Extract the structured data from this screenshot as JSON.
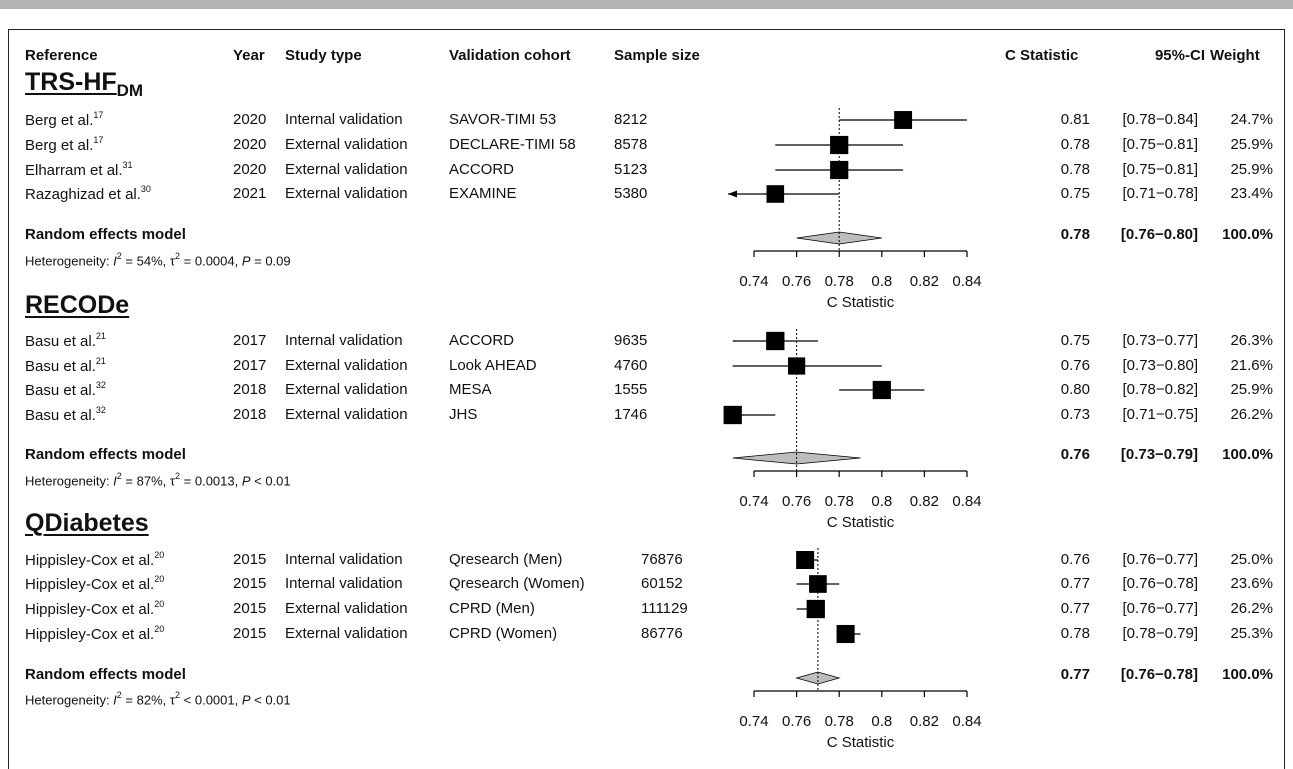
{
  "colors": {
    "square": "#000000",
    "diamond": "#bdbdbd",
    "border": "#222222",
    "topbar": "#b3b3b3"
  },
  "headers": {
    "reference": "Reference",
    "year": "Year",
    "study_type": "Study type",
    "cohort": "Validation cohort",
    "sample": "Sample size",
    "cstat": "C Statistic",
    "ci": "95%-CI",
    "weight": "Weight"
  },
  "chart_data": {
    "type": "forest",
    "xlabel": "C Statistic",
    "xlim": [
      0.74,
      0.84
    ],
    "xticks": [
      "0.74",
      "0.76",
      "0.78",
      "0.8",
      "0.82",
      "0.84"
    ],
    "groups": [
      {
        "title": "TRS-HF",
        "title_sub": "DM",
        "pooled_est": 0.78,
        "studies": [
          {
            "ref": "Berg et al.",
            "sup": "17",
            "year": "2020",
            "type": "Internal validation",
            "cohort": "SAVOR-TIMI 53",
            "n": "8212",
            "est": 0.81,
            "lo": 0.78,
            "hi": 0.84,
            "cstat": "0.81",
            "ci": "[0.78−0.84]",
            "weight": "24.7%",
            "w": 24.7
          },
          {
            "ref": "Berg et al.",
            "sup": "17",
            "year": "2020",
            "type": "External validation",
            "cohort": "DECLARE-TIMI 58",
            "n": "8578",
            "est": 0.78,
            "lo": 0.75,
            "hi": 0.81,
            "cstat": "0.78",
            "ci": "[0.75−0.81]",
            "weight": "25.9%",
            "w": 25.9
          },
          {
            "ref": "Elharram et al.",
            "sup": "31",
            "year": "2020",
            "type": "External validation",
            "cohort": "ACCORD",
            "n": "5123",
            "est": 0.78,
            "lo": 0.75,
            "hi": 0.81,
            "cstat": "0.78",
            "ci": "[0.75−0.81]",
            "weight": "25.9%",
            "w": 25.9
          },
          {
            "ref": "Razaghizad et al.",
            "sup": "30",
            "year": "2021",
            "type": "External validation",
            "cohort": "EXAMINE",
            "n": "5380",
            "est": 0.75,
            "lo": 0.71,
            "hi": 0.78,
            "cstat": "0.75",
            "ci": "[0.71−0.78]",
            "weight": "23.4%",
            "w": 23.4
          }
        ],
        "pooled": {
          "label": "Random effects model",
          "est": 0.78,
          "lo": 0.76,
          "hi": 0.8,
          "cstat": "0.78",
          "ci": "[0.76−0.80]",
          "weight": "100.0%"
        },
        "het": {
          "prefix": "Heterogeneity: ",
          "i2": "I",
          "i2_rest": " = 54%, τ",
          "tau_rest": " = 0.0004, ",
          "p": "P",
          "p_rest": " = 0.09"
        }
      },
      {
        "title": "RECODe",
        "title_sub": "",
        "pooled_est": 0.76,
        "studies": [
          {
            "ref": "Basu et al.",
            "sup": "21",
            "year": "2017",
            "type": "Internal validation",
            "cohort": "ACCORD",
            "n": "9635",
            "est": 0.75,
            "lo": 0.73,
            "hi": 0.77,
            "cstat": "0.75",
            "ci": "[0.73−0.77]",
            "weight": "26.3%",
            "w": 26.3
          },
          {
            "ref": "Basu et al.",
            "sup": "21",
            "year": "2017",
            "type": "External validation",
            "cohort": "Look AHEAD",
            "n": "4760",
            "est": 0.76,
            "lo": 0.73,
            "hi": 0.8,
            "cstat": "0.76",
            "ci": "[0.73−0.80]",
            "weight": "21.6%",
            "w": 21.6
          },
          {
            "ref": "Basu et al.",
            "sup": "32",
            "year": "2018",
            "type": "External validation",
            "cohort": "MESA",
            "n": "1555",
            "est": 0.8,
            "lo": 0.78,
            "hi": 0.82,
            "cstat": "0.80",
            "ci": "[0.78−0.82]",
            "weight": "25.9%",
            "w": 25.9
          },
          {
            "ref": "Basu et al.",
            "sup": "32",
            "year": "2018",
            "type": "External validation",
            "cohort": "JHS",
            "n": "1746",
            "est": 0.73,
            "lo": 0.71,
            "hi": 0.75,
            "cstat": "0.73",
            "ci": "[0.71−0.75]",
            "weight": "26.2%",
            "w": 26.2
          }
        ],
        "pooled": {
          "label": "Random effects model",
          "est": 0.76,
          "lo": 0.73,
          "hi": 0.79,
          "cstat": "0.76",
          "ci": "[0.73−0.79]",
          "weight": "100.0%"
        },
        "het": {
          "prefix": "Heterogeneity: ",
          "i2": "I",
          "i2_rest": " = 87%, τ",
          "tau_rest": " = 0.0013, ",
          "p": "P",
          "p_rest": " < 0.01"
        }
      },
      {
        "title": "QDiabetes",
        "title_sub": "",
        "pooled_est": 0.77,
        "studies": [
          {
            "ref": "Hippisley-Cox et al.",
            "sup": "20",
            "year": "2015",
            "type": "Internal validation",
            "cohort": "Qresearch (Men)",
            "n": "76876",
            "est": 0.764,
            "lo": 0.76,
            "hi": 0.77,
            "cstat": "0.76",
            "ci": "[0.76−0.77]",
            "weight": "25.0%",
            "w": 25.0
          },
          {
            "ref": "Hippisley-Cox et al.",
            "sup": "20",
            "year": "2015",
            "type": "Internal validation",
            "cohort": "Qresearch (Women)",
            "n": "60152",
            "est": 0.77,
            "lo": 0.76,
            "hi": 0.78,
            "cstat": "0.77",
            "ci": "[0.76−0.78]",
            "weight": "23.6%",
            "w": 23.6
          },
          {
            "ref": "Hippisley-Cox et al.",
            "sup": "20",
            "year": "2015",
            "type": "External validation",
            "cohort": "CPRD (Men)",
            "n": "111129",
            "est": 0.769,
            "lo": 0.76,
            "hi": 0.77,
            "cstat": "0.77",
            "ci": "[0.76−0.77]",
            "weight": "26.2%",
            "w": 26.2
          },
          {
            "ref": "Hippisley-Cox et al.",
            "sup": "20",
            "year": "2015",
            "type": "External validation",
            "cohort": "CPRD (Women)",
            "n": "86776",
            "est": 0.783,
            "lo": 0.78,
            "hi": 0.79,
            "cstat": "0.78",
            "ci": "[0.78−0.79]",
            "weight": "25.3%",
            "w": 25.3
          }
        ],
        "pooled": {
          "label": "Random effects model",
          "est": 0.77,
          "lo": 0.76,
          "hi": 0.78,
          "cstat": "0.77",
          "ci": "[0.76−0.78]",
          "weight": "100.0%"
        },
        "het": {
          "prefix": "Heterogeneity: ",
          "i2": "I",
          "i2_rest": " = 82%, τ",
          "tau_rest": " < 0.0001, ",
          "p": "P",
          "p_rest": " < 0.01"
        }
      }
    ]
  }
}
